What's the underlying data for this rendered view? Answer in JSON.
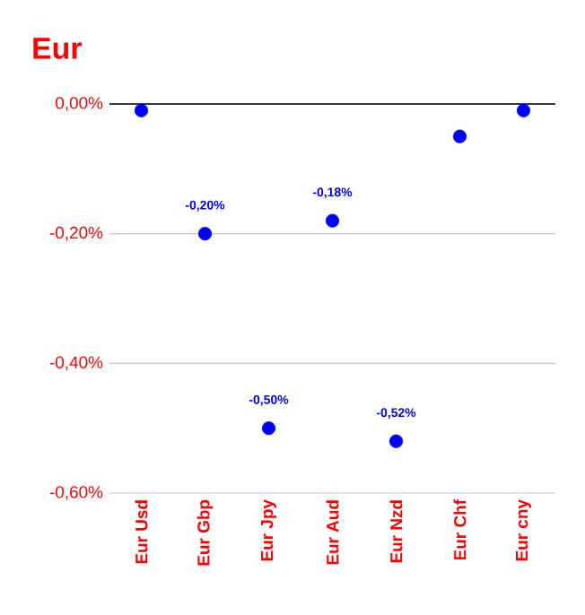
{
  "chart_data": {
    "type": "scatter",
    "title": "Eur",
    "categories": [
      "Eur Usd",
      "Eur Gbp",
      "Eur Jpy",
      "Eur Aud",
      "Eur Nzd",
      "Eur Chf",
      "Eur cny"
    ],
    "series": [
      {
        "color": "#0000ff",
        "values": [
          -0.01,
          -0.2,
          -0.5,
          -0.18,
          -0.52,
          -0.05,
          -0.01
        ],
        "value_labels": [
          null,
          "-0,20%",
          "-0,50%",
          "-0,18%",
          "-0,52%",
          null,
          null
        ]
      }
    ],
    "ylim": [
      -0.6,
      0
    ],
    "yticks": [
      {
        "value": -0.6,
        "label": "-0,60%"
      },
      {
        "value": -0.4,
        "label": "-0,40%"
      },
      {
        "value": -0.2,
        "label": "-0,20%"
      },
      {
        "value": 0,
        "label": "0,00%"
      }
    ],
    "ref_lines": [
      {
        "axis": "y",
        "value": 0,
        "color": "#000000"
      }
    ],
    "grid": "y",
    "marker": "circle",
    "legend": false
  }
}
